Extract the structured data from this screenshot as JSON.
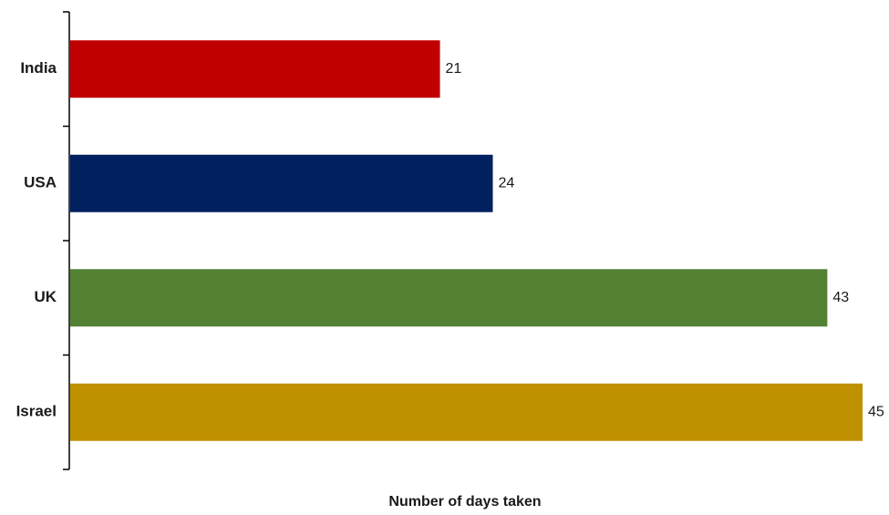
{
  "chart_data": {
    "type": "bar",
    "orientation": "horizontal",
    "categories": [
      "India",
      "USA",
      "UK",
      "Israel"
    ],
    "values": [
      21,
      24,
      43,
      45
    ],
    "colors": [
      "#c00000",
      "#002060",
      "#548235",
      "#bf9000"
    ],
    "xlabel": "Number of days taken",
    "ylabel": "",
    "xlim": [
      0,
      45
    ],
    "grid": false,
    "legend": "none",
    "data_labels": true
  }
}
